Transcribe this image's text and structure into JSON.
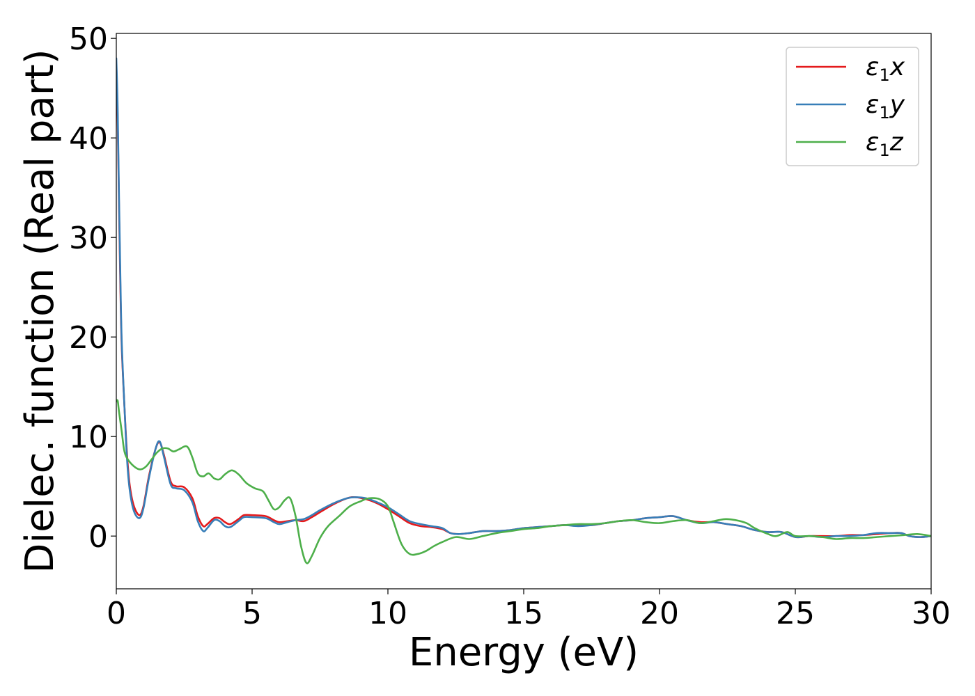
{
  "chart_data": {
    "type": "line",
    "xlabel": "Energy (eV)",
    "ylabel": "Dielec. function (Real part)",
    "xlim": [
      0,
      30
    ],
    "ylim": [
      -5.3,
      50.5
    ],
    "xticks": [
      "0",
      "5",
      "10",
      "15",
      "20",
      "25",
      "30"
    ],
    "yticks": [
      "0",
      "10",
      "20",
      "30",
      "40",
      "50"
    ],
    "grid": false,
    "legend_position": "upper right",
    "series": [
      {
        "name": "ε1x",
        "color": "#e41a1c",
        "points": [
          [
            0.0,
            47.5
          ],
          [
            0.05,
            42
          ],
          [
            0.1,
            33
          ],
          [
            0.15,
            25
          ],
          [
            0.2,
            19
          ],
          [
            0.3,
            13
          ],
          [
            0.4,
            8
          ],
          [
            0.5,
            5
          ],
          [
            0.65,
            3
          ],
          [
            0.85,
            2.1
          ],
          [
            1.0,
            3
          ],
          [
            1.2,
            6
          ],
          [
            1.45,
            8.8
          ],
          [
            1.6,
            9.4
          ],
          [
            1.75,
            8.2
          ],
          [
            2.0,
            5.5
          ],
          [
            2.2,
            5.0
          ],
          [
            2.5,
            4.9
          ],
          [
            2.8,
            3.8
          ],
          [
            3.0,
            2.0
          ],
          [
            3.2,
            1.0
          ],
          [
            3.35,
            1.2
          ],
          [
            3.6,
            1.8
          ],
          [
            3.8,
            1.8
          ],
          [
            4.0,
            1.4
          ],
          [
            4.2,
            1.2
          ],
          [
            4.5,
            1.7
          ],
          [
            4.7,
            2.1
          ],
          [
            5.0,
            2.1
          ],
          [
            5.5,
            2.0
          ],
          [
            5.8,
            1.6
          ],
          [
            6.0,
            1.4
          ],
          [
            6.3,
            1.5
          ],
          [
            6.6,
            1.6
          ],
          [
            6.9,
            1.5
          ],
          [
            7.2,
            1.9
          ],
          [
            7.5,
            2.4
          ],
          [
            8.0,
            3.2
          ],
          [
            8.5,
            3.8
          ],
          [
            8.8,
            3.9
          ],
          [
            9.2,
            3.7
          ],
          [
            9.6,
            3.3
          ],
          [
            10.0,
            2.7
          ],
          [
            10.4,
            2.0
          ],
          [
            10.8,
            1.3
          ],
          [
            11.2,
            1.0
          ],
          [
            11.6,
            0.9
          ],
          [
            12.0,
            0.7
          ],
          [
            12.3,
            0.3
          ],
          [
            12.6,
            0.2
          ],
          [
            13.0,
            0.3
          ],
          [
            13.5,
            0.5
          ],
          [
            14.0,
            0.5
          ],
          [
            14.5,
            0.6
          ],
          [
            15.0,
            0.8
          ],
          [
            15.5,
            0.9
          ],
          [
            16.0,
            1.0
          ],
          [
            16.5,
            1.1
          ],
          [
            17.0,
            1.1
          ],
          [
            17.5,
            1.1
          ],
          [
            18.0,
            1.3
          ],
          [
            18.5,
            1.5
          ],
          [
            19.0,
            1.6
          ],
          [
            19.5,
            1.8
          ],
          [
            20.0,
            1.9
          ],
          [
            20.5,
            2.0
          ],
          [
            21.0,
            1.6
          ],
          [
            21.5,
            1.4
          ],
          [
            22.0,
            1.4
          ],
          [
            22.5,
            1.2
          ],
          [
            23.0,
            1.0
          ],
          [
            23.5,
            0.6
          ],
          [
            24.0,
            0.4
          ],
          [
            24.5,
            0.4
          ],
          [
            25.0,
            -0.1
          ],
          [
            25.5,
            0.0
          ],
          [
            26.0,
            0.0
          ],
          [
            26.5,
            0.0
          ],
          [
            27.0,
            0.1
          ],
          [
            27.5,
            0.1
          ],
          [
            28.0,
            0.2
          ],
          [
            28.5,
            0.3
          ],
          [
            28.9,
            0.3
          ],
          [
            29.2,
            0.0
          ],
          [
            29.6,
            -0.1
          ],
          [
            30.0,
            0.0
          ]
        ]
      },
      {
        "name": "ε1y",
        "color": "#377eb8",
        "points": [
          [
            0.0,
            48
          ],
          [
            0.05,
            43
          ],
          [
            0.1,
            34
          ],
          [
            0.15,
            26
          ],
          [
            0.2,
            19.5
          ],
          [
            0.3,
            13
          ],
          [
            0.4,
            7.5
          ],
          [
            0.5,
            4.5
          ],
          [
            0.65,
            2.5
          ],
          [
            0.85,
            1.8
          ],
          [
            1.0,
            2.8
          ],
          [
            1.2,
            5.8
          ],
          [
            1.45,
            8.8
          ],
          [
            1.6,
            9.5
          ],
          [
            1.75,
            8.0
          ],
          [
            2.0,
            5.2
          ],
          [
            2.2,
            4.8
          ],
          [
            2.5,
            4.6
          ],
          [
            2.8,
            3.4
          ],
          [
            3.0,
            1.5
          ],
          [
            3.2,
            0.5
          ],
          [
            3.35,
            0.8
          ],
          [
            3.6,
            1.6
          ],
          [
            3.8,
            1.5
          ],
          [
            4.0,
            1.0
          ],
          [
            4.2,
            0.9
          ],
          [
            4.5,
            1.5
          ],
          [
            4.7,
            1.9
          ],
          [
            5.0,
            1.9
          ],
          [
            5.5,
            1.8
          ],
          [
            5.8,
            1.4
          ],
          [
            6.0,
            1.2
          ],
          [
            6.3,
            1.4
          ],
          [
            6.6,
            1.6
          ],
          [
            6.9,
            1.7
          ],
          [
            7.2,
            2.1
          ],
          [
            7.5,
            2.6
          ],
          [
            8.0,
            3.3
          ],
          [
            8.5,
            3.8
          ],
          [
            8.8,
            3.9
          ],
          [
            9.2,
            3.8
          ],
          [
            9.6,
            3.4
          ],
          [
            10.0,
            2.9
          ],
          [
            10.4,
            2.2
          ],
          [
            10.8,
            1.5
          ],
          [
            11.2,
            1.2
          ],
          [
            11.6,
            1.0
          ],
          [
            12.0,
            0.8
          ],
          [
            12.3,
            0.3
          ],
          [
            12.6,
            0.2
          ],
          [
            13.0,
            0.3
          ],
          [
            13.5,
            0.5
          ],
          [
            14.0,
            0.5
          ],
          [
            14.5,
            0.6
          ],
          [
            15.0,
            0.8
          ],
          [
            15.5,
            0.9
          ],
          [
            16.0,
            1.0
          ],
          [
            16.5,
            1.1
          ],
          [
            17.0,
            1.0
          ],
          [
            17.5,
            1.1
          ],
          [
            18.0,
            1.3
          ],
          [
            18.5,
            1.5
          ],
          [
            19.0,
            1.6
          ],
          [
            19.5,
            1.8
          ],
          [
            20.0,
            1.9
          ],
          [
            20.5,
            2.0
          ],
          [
            21.0,
            1.6
          ],
          [
            21.5,
            1.3
          ],
          [
            22.0,
            1.4
          ],
          [
            22.5,
            1.2
          ],
          [
            23.0,
            1.0
          ],
          [
            23.5,
            0.6
          ],
          [
            24.0,
            0.4
          ],
          [
            24.5,
            0.4
          ],
          [
            25.0,
            -0.1
          ],
          [
            25.5,
            0.0
          ],
          [
            26.0,
            -0.1
          ],
          [
            26.5,
            0.0
          ],
          [
            27.0,
            0.0
          ],
          [
            27.5,
            0.1
          ],
          [
            28.0,
            0.3
          ],
          [
            28.5,
            0.3
          ],
          [
            28.9,
            0.3
          ],
          [
            29.2,
            0.0
          ],
          [
            29.6,
            -0.1
          ],
          [
            30.0,
            0.0
          ]
        ]
      },
      {
        "name": "ε1z",
        "color": "#4daf4a",
        "points": [
          [
            0.0,
            13.5
          ],
          [
            0.05,
            13.6
          ],
          [
            0.1,
            12.5
          ],
          [
            0.2,
            10.5
          ],
          [
            0.3,
            8.5
          ],
          [
            0.45,
            7.6
          ],
          [
            0.7,
            6.9
          ],
          [
            0.9,
            6.7
          ],
          [
            1.1,
            7.0
          ],
          [
            1.3,
            7.7
          ],
          [
            1.5,
            8.4
          ],
          [
            1.7,
            8.8
          ],
          [
            1.9,
            8.8
          ],
          [
            2.1,
            8.5
          ],
          [
            2.3,
            8.7
          ],
          [
            2.6,
            9.0
          ],
          [
            2.8,
            7.9
          ],
          [
            3.0,
            6.3
          ],
          [
            3.2,
            6.0
          ],
          [
            3.4,
            6.3
          ],
          [
            3.6,
            5.8
          ],
          [
            3.8,
            5.7
          ],
          [
            4.0,
            6.2
          ],
          [
            4.25,
            6.6
          ],
          [
            4.5,
            6.2
          ],
          [
            4.8,
            5.3
          ],
          [
            5.1,
            4.8
          ],
          [
            5.4,
            4.5
          ],
          [
            5.6,
            3.6
          ],
          [
            5.8,
            2.7
          ],
          [
            6.0,
            2.9
          ],
          [
            6.2,
            3.6
          ],
          [
            6.4,
            3.8
          ],
          [
            6.6,
            2.0
          ],
          [
            6.8,
            -1.0
          ],
          [
            7.0,
            -2.7
          ],
          [
            7.2,
            -2.0
          ],
          [
            7.5,
            -0.2
          ],
          [
            7.8,
            1.0
          ],
          [
            8.2,
            2.0
          ],
          [
            8.6,
            3.0
          ],
          [
            9.0,
            3.5
          ],
          [
            9.3,
            3.8
          ],
          [
            9.7,
            3.7
          ],
          [
            10.0,
            3.0
          ],
          [
            10.2,
            1.5
          ],
          [
            10.5,
            -0.8
          ],
          [
            10.8,
            -1.8
          ],
          [
            11.1,
            -1.8
          ],
          [
            11.4,
            -1.5
          ],
          [
            11.7,
            -1.0
          ],
          [
            12.0,
            -0.6
          ],
          [
            12.5,
            -0.1
          ],
          [
            13.0,
            -0.3
          ],
          [
            13.5,
            0.0
          ],
          [
            14.0,
            0.3
          ],
          [
            14.5,
            0.5
          ],
          [
            15.0,
            0.7
          ],
          [
            15.5,
            0.8
          ],
          [
            16.0,
            1.0
          ],
          [
            16.5,
            1.1
          ],
          [
            17.0,
            1.2
          ],
          [
            17.5,
            1.2
          ],
          [
            18.0,
            1.3
          ],
          [
            18.5,
            1.5
          ],
          [
            19.0,
            1.6
          ],
          [
            19.5,
            1.4
          ],
          [
            20.0,
            1.3
          ],
          [
            20.5,
            1.5
          ],
          [
            21.0,
            1.6
          ],
          [
            21.5,
            1.3
          ],
          [
            22.0,
            1.5
          ],
          [
            22.4,
            1.7
          ],
          [
            22.8,
            1.6
          ],
          [
            23.2,
            1.3
          ],
          [
            23.5,
            0.8
          ],
          [
            24.0,
            0.2
          ],
          [
            24.3,
            0.0
          ],
          [
            24.7,
            0.4
          ],
          [
            25.0,
            0.0
          ],
          [
            25.5,
            0.0
          ],
          [
            26.0,
            -0.1
          ],
          [
            26.5,
            -0.3
          ],
          [
            27.0,
            -0.2
          ],
          [
            27.5,
            -0.2
          ],
          [
            28.0,
            -0.1
          ],
          [
            28.5,
            0.0
          ],
          [
            29.0,
            0.1
          ],
          [
            29.5,
            0.2
          ],
          [
            30.0,
            0.0
          ]
        ]
      }
    ]
  }
}
